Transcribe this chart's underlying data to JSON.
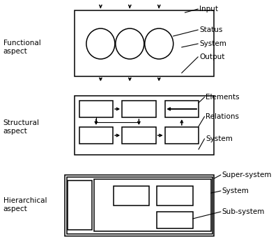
{
  "bg_color": "#ffffff",
  "line_color": "#000000",
  "text_color": "#000000",
  "fig_width": 3.99,
  "fig_height": 3.5,
  "dpi": 100,
  "functional_label": "Functional\naspect",
  "structural_label": "Structural\naspect",
  "hierarchical_label": "Hierarchical\naspect",
  "annot_input": "Input",
  "annot_status": "Status",
  "annot_system_f": "System",
  "annot_output": "Output",
  "annot_elements": "Elements",
  "annot_relations": "Relations",
  "annot_system_s": "System",
  "annot_supersystem": "Super-system",
  "annot_system_h": "System",
  "annot_subsystem": "Sub-system"
}
